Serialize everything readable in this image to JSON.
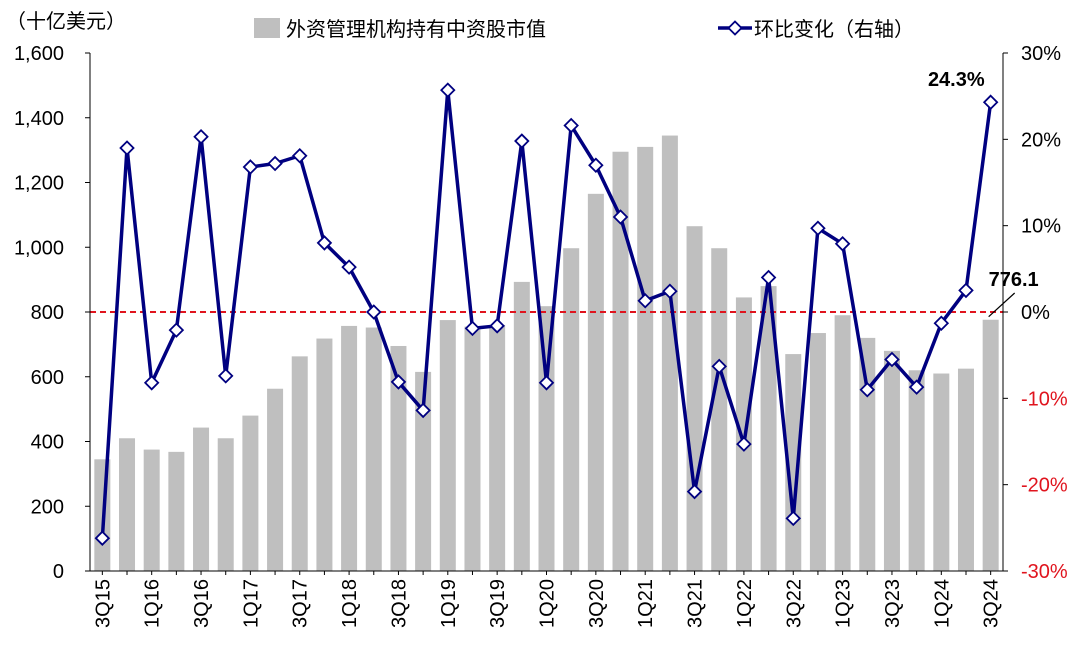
{
  "chart_data": {
    "type": "bar+line",
    "unit_label": "（十亿美元）",
    "categories": [
      "3Q15",
      "4Q15",
      "1Q16",
      "2Q16",
      "3Q16",
      "4Q16",
      "1Q17",
      "2Q17",
      "3Q17",
      "4Q17",
      "1Q18",
      "2Q18",
      "3Q18",
      "4Q18",
      "1Q19",
      "2Q19",
      "3Q19",
      "4Q19",
      "1Q20",
      "2Q20",
      "3Q20",
      "4Q20",
      "1Q21",
      "2Q21",
      "3Q21",
      "4Q21",
      "1Q22",
      "2Q22",
      "3Q22",
      "4Q22",
      "1Q23",
      "2Q23",
      "3Q23",
      "4Q23",
      "1Q24",
      "2Q24",
      "3Q24"
    ],
    "x_tick_labels": [
      "3Q15",
      "",
      "1Q16",
      "",
      "3Q16",
      "",
      "1Q17",
      "",
      "3Q17",
      "",
      "1Q18",
      "",
      "3Q18",
      "",
      "1Q19",
      "",
      "3Q19",
      "",
      "1Q20",
      "",
      "3Q20",
      "",
      "1Q21",
      "",
      "3Q21",
      "",
      "1Q22",
      "",
      "3Q22",
      "",
      "1Q23",
      "",
      "3Q23",
      "",
      "1Q24",
      "",
      "3Q24"
    ],
    "series": [
      {
        "name": "外资管理机构持有中资股市值",
        "type": "bar",
        "axis": "left",
        "color": "#bfbfbf",
        "values": [
          345,
          410,
          375,
          368,
          443,
          410,
          480,
          563,
          663,
          718,
          757,
          752,
          695,
          615,
          775,
          755,
          760,
          893,
          818,
          997,
          1165,
          1295,
          1310,
          1345,
          1065,
          997,
          845,
          880,
          670,
          735,
          790,
          720,
          680,
          620,
          610,
          625,
          776.1
        ]
      },
      {
        "name": "环比变化（右轴）",
        "type": "line",
        "axis": "right",
        "color": "#000080",
        "values": [
          -26.2,
          19.0,
          -8.2,
          -2.1,
          20.3,
          -7.4,
          16.8,
          17.2,
          18.1,
          8.0,
          5.2,
          0.0,
          -8.1,
          -11.4,
          25.7,
          -1.9,
          -1.6,
          19.8,
          -8.2,
          21.6,
          17.0,
          11.0,
          1.3,
          2.4,
          -20.8,
          -6.3,
          -15.3,
          4.0,
          -23.9,
          9.7,
          7.9,
          -9.0,
          -5.5,
          -8.7,
          -1.3,
          2.5,
          24.3
        ]
      }
    ],
    "y_left": {
      "min": 0,
      "max": 1600,
      "ticks": [
        0,
        200,
        400,
        600,
        800,
        1000,
        1200,
        1400,
        1600
      ],
      "tick_labels": [
        "0",
        "200",
        "400",
        "600",
        "800",
        "1,000",
        "1,200",
        "1,400",
        "1,600"
      ]
    },
    "y_right": {
      "min": -30,
      "max": 30,
      "ticks": [
        -30,
        -20,
        -10,
        0,
        10,
        20,
        30
      ],
      "tick_labels": [
        "-30%",
        "-20%",
        "-10%",
        "0%",
        "10%",
        "20%",
        "30%"
      ],
      "negative_color": "#e0141e"
    },
    "zero_line": {
      "value": 0,
      "color": "#e0141e",
      "style": "dashed"
    },
    "annotations": [
      {
        "label": "24.3%",
        "series": "line",
        "index": 36
      },
      {
        "label": "776.1",
        "series": "bar",
        "index": 36
      }
    ],
    "legend": {
      "position": "top"
    },
    "grid": false
  }
}
